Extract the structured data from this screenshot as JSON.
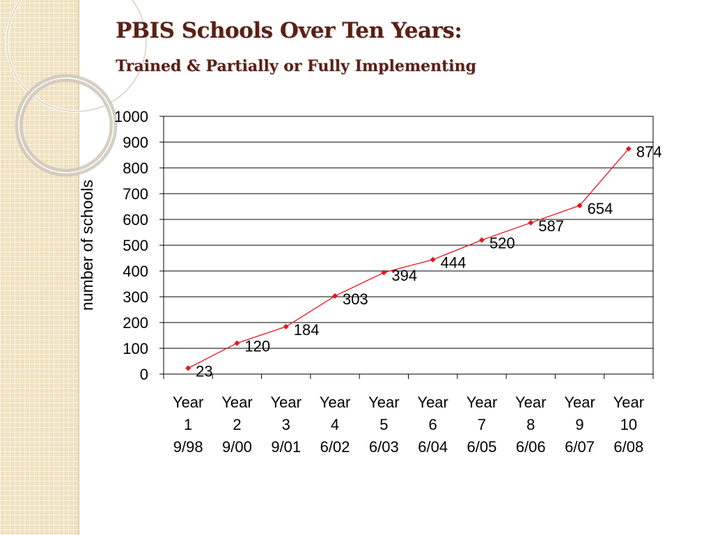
{
  "slide": {
    "title": "PBIS Schools Over Ten Years:",
    "subtitle": "Trained & Partially or Fully Implementing"
  },
  "chart_data": {
    "type": "line",
    "title": "",
    "xlabel": "",
    "ylabel": "number of schools",
    "ylim": [
      0,
      1000
    ],
    "yticks": [
      0,
      100,
      200,
      300,
      400,
      500,
      600,
      700,
      800,
      900,
      1000
    ],
    "grid": true,
    "legend": "none",
    "categories": [
      [
        "Year",
        "1",
        "9/98"
      ],
      [
        "Year",
        "2",
        "9/00"
      ],
      [
        "Year",
        "3",
        "9/01"
      ],
      [
        "Year",
        "4",
        "6/02"
      ],
      [
        "Year",
        "5",
        "6/03"
      ],
      [
        "Year",
        "6",
        "6/04"
      ],
      [
        "Year",
        "7",
        "6/05"
      ],
      [
        "Year",
        "8",
        "6/06"
      ],
      [
        "Year",
        "9",
        "6/07"
      ],
      [
        "Year",
        "10",
        "6/08"
      ]
    ],
    "series": [
      {
        "values": [
          23,
          120,
          184,
          303,
          394,
          444,
          520,
          587,
          654,
          874
        ],
        "color": "#e8141b"
      }
    ]
  }
}
